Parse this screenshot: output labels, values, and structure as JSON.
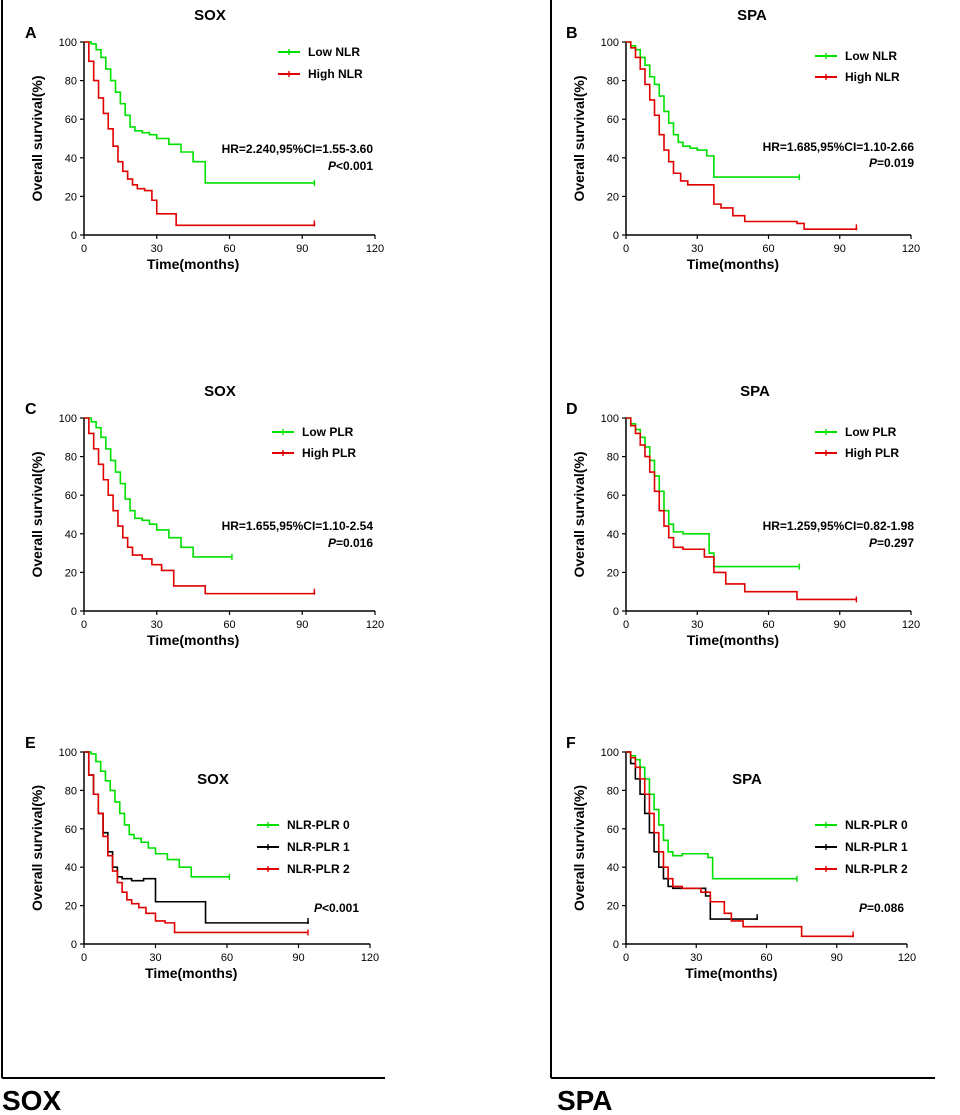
{
  "figure": {
    "group_labels": [
      "SOX",
      "SPA"
    ]
  },
  "chart_data": [
    {
      "panel": "A",
      "type": "line",
      "title": "SOX",
      "xlabel": "Time(months)",
      "ylabel": "Overall survival(%)",
      "xlim": [
        0,
        120
      ],
      "ylim": [
        0,
        100
      ],
      "xticks": [
        0,
        30,
        60,
        90,
        120
      ],
      "yticks": [
        0,
        20,
        40,
        60,
        80,
        100
      ],
      "series": [
        {
          "name": "Low NLR",
          "color": "#00e000",
          "x": [
            0,
            3,
            5,
            7,
            9,
            11,
            13,
            15,
            17,
            19,
            21,
            24,
            27,
            30,
            35,
            40,
            45,
            50,
            55,
            60,
            70,
            80,
            90,
            95
          ],
          "y": [
            100,
            99,
            96,
            92,
            86,
            80,
            74,
            68,
            62,
            56,
            54,
            53,
            52,
            50,
            47,
            43,
            38,
            27,
            27,
            27,
            27,
            27,
            27,
            27
          ]
        },
        {
          "name": "High NLR",
          "color": "#e00000",
          "x": [
            0,
            2,
            4,
            6,
            8,
            10,
            12,
            14,
            16,
            18,
            20,
            22,
            25,
            28,
            30,
            35,
            38,
            50,
            60,
            70,
            80,
            90,
            95
          ],
          "y": [
            100,
            90,
            80,
            71,
            63,
            55,
            46,
            38,
            33,
            29,
            26,
            24,
            23,
            18,
            11,
            11,
            5,
            5,
            5,
            5,
            5,
            5,
            6
          ]
        }
      ],
      "annotations": [
        "HR=2.240,95%CI=1.55-3.60",
        "P<0.001"
      ]
    },
    {
      "panel": "B",
      "type": "line",
      "title": "SPA",
      "xlabel": "Time(months)",
      "ylabel": "Overall survival(%)",
      "xlim": [
        0,
        120
      ],
      "ylim": [
        0,
        100
      ],
      "xticks": [
        0,
        30,
        60,
        90,
        120
      ],
      "yticks": [
        0,
        20,
        40,
        60,
        80,
        100
      ],
      "series": [
        {
          "name": "Low NLR",
          "color": "#00e000",
          "x": [
            0,
            2,
            4,
            6,
            8,
            10,
            12,
            14,
            16,
            18,
            20,
            22,
            24,
            27,
            30,
            34,
            37,
            45,
            55,
            65,
            73
          ],
          "y": [
            100,
            98,
            96,
            92,
            88,
            82,
            78,
            72,
            64,
            58,
            52,
            48,
            46,
            45,
            44,
            41,
            30,
            30,
            30,
            30,
            30
          ]
        },
        {
          "name": "High NLR",
          "color": "#e00000",
          "x": [
            0,
            2,
            4,
            6,
            8,
            10,
            12,
            14,
            16,
            18,
            20,
            23,
            26,
            30,
            34,
            37,
            40,
            45,
            50,
            60,
            72,
            75,
            85,
            97
          ],
          "y": [
            100,
            97,
            92,
            86,
            78,
            70,
            62,
            52,
            44,
            38,
            32,
            28,
            26,
            26,
            26,
            16,
            14,
            10,
            7,
            7,
            6,
            3,
            3,
            4
          ]
        }
      ],
      "annotations": [
        "HR=1.685,95%CI=1.10-2.66",
        "P=0.019"
      ]
    },
    {
      "panel": "C",
      "type": "line",
      "title": "SOX",
      "xlabel": "Time(months)",
      "ylabel": "Overall survival(%)",
      "xlim": [
        0,
        120
      ],
      "ylim": [
        0,
        100
      ],
      "xticks": [
        0,
        30,
        60,
        90,
        120
      ],
      "yticks": [
        0,
        20,
        40,
        60,
        80,
        100
      ],
      "series": [
        {
          "name": "Low PLR",
          "color": "#00e000",
          "x": [
            0,
            3,
            5,
            7,
            9,
            11,
            13,
            15,
            17,
            19,
            21,
            24,
            27,
            30,
            35,
            40,
            45,
            50,
            55,
            61
          ],
          "y": [
            100,
            98,
            95,
            90,
            84,
            78,
            72,
            66,
            58,
            52,
            48,
            47,
            45,
            42,
            38,
            33,
            28,
            28,
            28,
            28
          ]
        },
        {
          "name": "High PLR",
          "color": "#e00000",
          "x": [
            0,
            2,
            4,
            6,
            8,
            10,
            12,
            14,
            16,
            18,
            20,
            24,
            28,
            32,
            37,
            45,
            50,
            60,
            80,
            95
          ],
          "y": [
            100,
            92,
            84,
            76,
            68,
            60,
            52,
            44,
            38,
            33,
            29,
            27,
            24,
            21,
            13,
            13,
            9,
            9,
            9,
            10
          ]
        }
      ],
      "annotations": [
        "HR=1.655,95%CI=1.10-2.54",
        "P=0.016"
      ]
    },
    {
      "panel": "D",
      "type": "line",
      "title": "SPA",
      "xlabel": "Time(months)",
      "ylabel": "Overall survival(%)",
      "xlim": [
        0,
        120
      ],
      "ylim": [
        0,
        100
      ],
      "xticks": [
        0,
        30,
        60,
        90,
        120
      ],
      "yticks": [
        0,
        20,
        40,
        60,
        80,
        100
      ],
      "series": [
        {
          "name": "Low PLR",
          "color": "#00e000",
          "x": [
            0,
            2,
            4,
            6,
            8,
            10,
            12,
            14,
            16,
            18,
            20,
            24,
            30,
            35,
            37,
            45,
            55,
            65,
            73
          ],
          "y": [
            100,
            97,
            94,
            90,
            85,
            78,
            70,
            62,
            52,
            45,
            41,
            40,
            40,
            30,
            23,
            23,
            23,
            23,
            23
          ]
        },
        {
          "name": "High PLR",
          "color": "#e00000",
          "x": [
            0,
            2,
            4,
            6,
            8,
            10,
            12,
            14,
            16,
            18,
            20,
            24,
            28,
            33,
            37,
            42,
            50,
            60,
            72,
            80,
            90,
            97
          ],
          "y": [
            100,
            96,
            92,
            86,
            80,
            72,
            62,
            52,
            44,
            38,
            33,
            32,
            32,
            28,
            20,
            14,
            10,
            10,
            6,
            6,
            6,
            6
          ]
        }
      ],
      "annotations": [
        "HR=1.259,95%CI=0.82-1.98",
        "P=0.297"
      ]
    },
    {
      "panel": "E",
      "type": "line",
      "title": "SOX",
      "xlabel": "Time(months)",
      "ylabel": "Overall survival(%)",
      "xlim": [
        0,
        120
      ],
      "ylim": [
        0,
        100
      ],
      "xticks": [
        0,
        30,
        60,
        90,
        120
      ],
      "yticks": [
        0,
        20,
        40,
        60,
        80,
        100
      ],
      "series": [
        {
          "name": "NLR-PLR 0",
          "color": "#00e000",
          "x": [
            0,
            3,
            5,
            7,
            9,
            11,
            13,
            15,
            17,
            19,
            21,
            24,
            27,
            30,
            35,
            40,
            45,
            50,
            55,
            61
          ],
          "y": [
            100,
            99,
            95,
            90,
            85,
            80,
            74,
            68,
            62,
            57,
            55,
            53,
            50,
            47,
            44,
            40,
            35,
            35,
            35,
            35
          ]
        },
        {
          "name": "NLR-PLR 1",
          "color": "#000000",
          "x": [
            0,
            2,
            4,
            6,
            8,
            10,
            12,
            14,
            16,
            20,
            25,
            30,
            35,
            40,
            45,
            50,
            51,
            60,
            80,
            94
          ],
          "y": [
            100,
            88,
            78,
            68,
            58,
            48,
            40,
            35,
            34,
            33,
            34,
            22,
            22,
            22,
            22,
            22,
            11,
            11,
            11,
            12
          ]
        },
        {
          "name": "NLR-PLR 2",
          "color": "#e00000",
          "x": [
            0,
            2,
            4,
            6,
            8,
            10,
            12,
            14,
            16,
            18,
            20,
            23,
            26,
            30,
            34,
            38,
            50,
            60,
            80,
            94
          ],
          "y": [
            100,
            88,
            78,
            68,
            56,
            46,
            38,
            32,
            27,
            23,
            21,
            19,
            16,
            12,
            11,
            6,
            6,
            6,
            6,
            6
          ]
        }
      ],
      "annotations": [
        "P<0.001"
      ]
    },
    {
      "panel": "F",
      "type": "line",
      "title": "SPA",
      "xlabel": "Time(months)",
      "ylabel": "Overall survival(%)",
      "xlim": [
        0,
        120
      ],
      "ylim": [
        0,
        100
      ],
      "xticks": [
        0,
        30,
        60,
        90,
        120
      ],
      "yticks": [
        0,
        20,
        40,
        60,
        80,
        100
      ],
      "series": [
        {
          "name": "NLR-PLR 0",
          "color": "#00e000",
          "x": [
            0,
            2,
            4,
            6,
            8,
            10,
            12,
            14,
            16,
            18,
            20,
            24,
            30,
            35,
            37,
            45,
            55,
            65,
            73
          ],
          "y": [
            100,
            98,
            96,
            92,
            86,
            78,
            70,
            62,
            54,
            48,
            46,
            47,
            47,
            45,
            34,
            34,
            34,
            34,
            34
          ]
        },
        {
          "name": "NLR-PLR 1",
          "color": "#000000",
          "x": [
            0,
            2,
            4,
            6,
            8,
            10,
            12,
            14,
            16,
            18,
            20,
            25,
            30,
            34,
            36,
            40,
            45,
            50,
            56
          ],
          "y": [
            100,
            94,
            86,
            78,
            68,
            58,
            48,
            40,
            34,
            30,
            29,
            29,
            29,
            25,
            13,
            13,
            13,
            13,
            14
          ]
        },
        {
          "name": "NLR-PLR 2",
          "color": "#e00000",
          "x": [
            0,
            2,
            4,
            6,
            8,
            10,
            12,
            14,
            16,
            18,
            20,
            24,
            28,
            32,
            36,
            40,
            42,
            45,
            50,
            60,
            72,
            75,
            85,
            97
          ],
          "y": [
            100,
            97,
            92,
            86,
            78,
            68,
            58,
            48,
            40,
            34,
            30,
            29,
            29,
            27,
            22,
            22,
            16,
            12,
            9,
            9,
            9,
            4,
            4,
            5
          ]
        }
      ],
      "annotations": [
        "P=0.086"
      ]
    }
  ]
}
